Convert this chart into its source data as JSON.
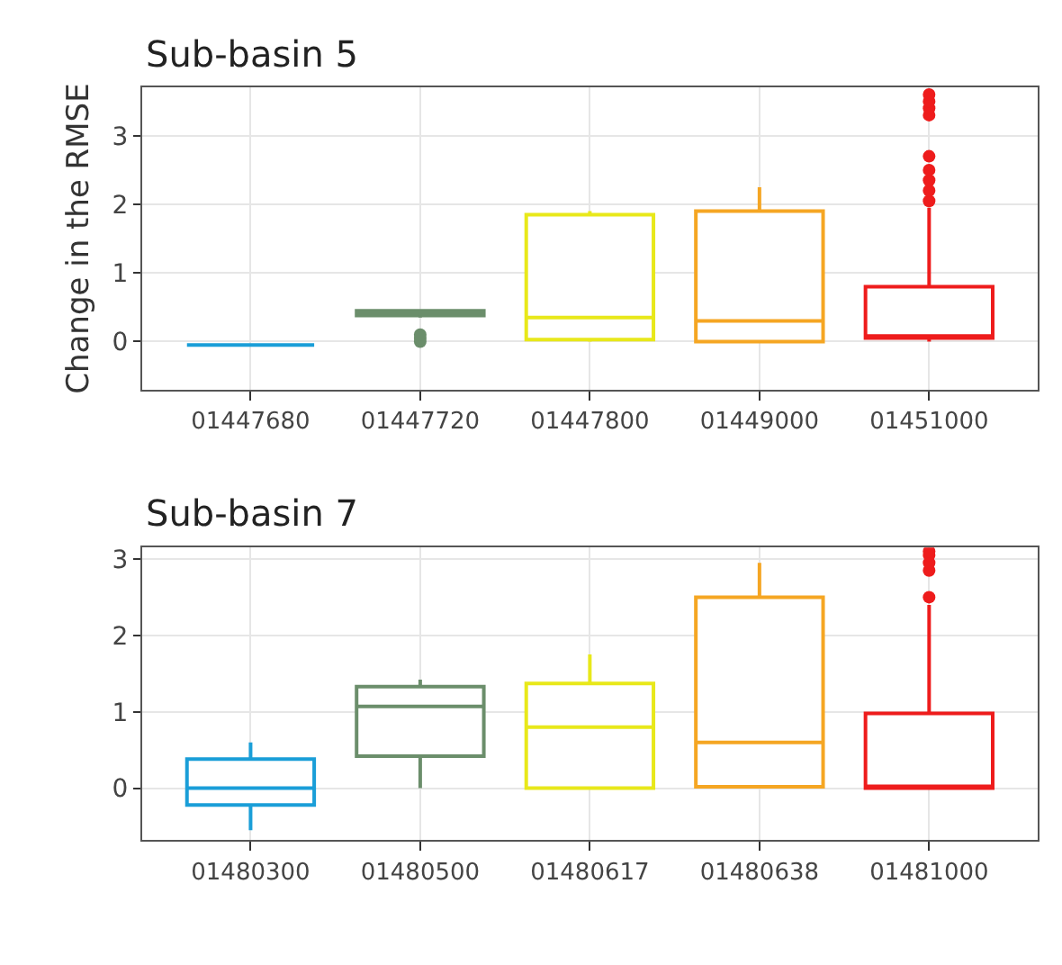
{
  "chart_data": [
    {
      "type": "box",
      "title": "Sub-basin 5",
      "ylabel": "Change in the RMSE",
      "categories": [
        "01447680",
        "01447720",
        "01447800",
        "01449000",
        "01451000"
      ],
      "colors": [
        "#1a9ed8",
        "#6b8e6b",
        "#e8e81a",
        "#f5a623",
        "#ee1c1c"
      ],
      "boxes": [
        {
          "low": -0.05,
          "q1": -0.05,
          "median": -0.05,
          "q3": -0.05,
          "high": -0.05
        },
        {
          "low": 0.35,
          "q1": 0.38,
          "median": 0.4,
          "q3": 0.45,
          "high": 0.45,
          "outliers": [
            0.0,
            0.05,
            0.1
          ]
        },
        {
          "low": 0,
          "q1": 0.03,
          "median": 0.35,
          "q3": 1.85,
          "high": 1.9
        },
        {
          "low": 0,
          "q1": 0,
          "median": 0.3,
          "q3": 1.9,
          "high": 2.25
        },
        {
          "low": 0,
          "q1": 0.05,
          "median": 0.08,
          "q3": 0.8,
          "high": 1.95,
          "outliers": [
            2.05,
            2.2,
            2.35,
            2.5,
            2.7,
            3.3,
            3.4,
            3.5,
            3.6
          ]
        }
      ],
      "ylim": [
        -0.7,
        3.7
      ],
      "yticks": [
        0,
        1,
        2,
        3
      ],
      "grid": true
    },
    {
      "type": "box",
      "title": "Sub-basin 7",
      "categories": [
        "01480300",
        "01480500",
        "01480617",
        "01480638",
        "01481000"
      ],
      "colors": [
        "#1a9ed8",
        "#6b8e6b",
        "#e8e81a",
        "#f5a623",
        "#ee1c1c"
      ],
      "boxes": [
        {
          "low": -0.55,
          "q1": -0.22,
          "median": 0.0,
          "q3": 0.38,
          "high": 0.6
        },
        {
          "low": 0,
          "q1": 0.42,
          "median": 1.07,
          "q3": 1.33,
          "high": 1.42
        },
        {
          "low": 0,
          "q1": 0,
          "median": 0.8,
          "q3": 1.37,
          "high": 1.75
        },
        {
          "low": 0,
          "q1": 0.02,
          "median": 0.6,
          "q3": 2.5,
          "high": 2.95
        },
        {
          "low": 0,
          "q1": 0,
          "median": 0.02,
          "q3": 0.98,
          "high": 2.4,
          "outliers": [
            2.5,
            2.85,
            2.95,
            3.05,
            3.1
          ]
        }
      ],
      "ylim": [
        -0.68,
        3.15
      ],
      "yticks": [
        0,
        1,
        2,
        3
      ],
      "grid": true
    }
  ]
}
